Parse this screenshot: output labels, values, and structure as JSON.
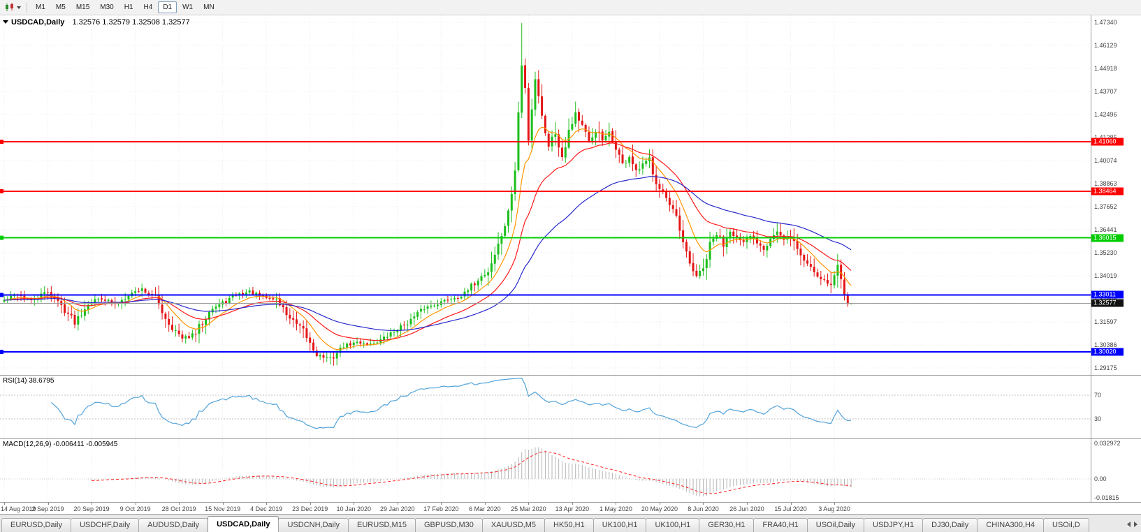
{
  "toolbar": {
    "timeframes": [
      "M1",
      "M5",
      "M15",
      "M30",
      "H1",
      "H4",
      "D1",
      "W1",
      "MN"
    ],
    "active": "D1"
  },
  "chart_header": {
    "title": "USDCAD,Daily",
    "ohlc_text": "1.32576 1.32579 1.32508 1.32577"
  },
  "rsi_panel": {
    "label": "RSI(14) 38.6795"
  },
  "macd_panel": {
    "label": "MACD(12,26,9) -0.006411 -0.005945",
    "axis_labels": [
      "0.032972",
      "0.00",
      "-0.01815"
    ]
  },
  "tabs": {
    "items": [
      "EURUSD,Daily",
      "USDCHF,Daily",
      "AUDUSD,Daily",
      "USDCAD,Daily",
      "USDCNH,Daily",
      "EURUSD,M15",
      "GBPUSD,M30",
      "XAUUSD,M5",
      "HK50,H1",
      "UK100,H1",
      "UK100,H1",
      "GER30,H1",
      "FRA40,H1",
      "USOil,Daily",
      "USDJPY,H1",
      "DJ30,Daily",
      "CHINA300,H4",
      "USOil,D"
    ],
    "active_index": 3
  },
  "chart_data": {
    "type": "candlestick",
    "symbol": "USDCAD",
    "timeframe": "Daily",
    "title": "USDCAD,Daily",
    "ohlc": {
      "open": "1.32576",
      "high": "1.32579",
      "low": "1.32508",
      "close": "1.32577"
    },
    "price_axis_top": 1.4734,
    "price_axis_bottom": 1.29175,
    "price_axis_ticks": [
      "1.47340",
      "1.46129",
      "1.44918",
      "1.43707",
      "1.42496",
      "1.41285",
      "1.40074",
      "1.38863",
      "1.37652",
      "1.36441",
      "1.35230",
      "1.34019",
      "1.32808",
      "1.31597",
      "1.30386",
      "1.29175"
    ],
    "date_ticks": [
      "14 Aug 2019",
      "2 Sep 2019",
      "20 Sep 2019",
      "9 Oct 2019",
      "28 Oct 2019",
      "15 Nov 2019",
      "4 Dec 2019",
      "23 Dec 2019",
      "10 Jan 2020",
      "29 Jan 2020",
      "17 Feb 2020",
      "6 Mar 2020",
      "25 Mar 2020",
      "13 Apr 2020",
      "1 May 2020",
      "20 May 2020",
      "8 Jun 2020",
      "26 Jun 2020",
      "15 Jul 2020",
      "3 Aug 2020"
    ],
    "candles_per_tick": 13,
    "candle_count": 253,
    "noise_seed": 42,
    "colors": {
      "bull": "#1cbf1c",
      "bear": "#e41616"
    },
    "anchors": [
      [
        0,
        1.3272
      ],
      [
        4,
        1.3305
      ],
      [
        8,
        1.3268
      ],
      [
        13,
        1.332
      ],
      [
        17,
        1.3245
      ],
      [
        21,
        1.3162
      ],
      [
        25,
        1.3258
      ],
      [
        29,
        1.3288
      ],
      [
        33,
        1.3248
      ],
      [
        37,
        1.3305
      ],
      [
        41,
        1.3332
      ],
      [
        45,
        1.3285
      ],
      [
        49,
        1.3152
      ],
      [
        53,
        1.3068
      ],
      [
        57,
        1.3098
      ],
      [
        61,
        1.3222
      ],
      [
        65,
        1.3258
      ],
      [
        69,
        1.3302
      ],
      [
        73,
        1.3318
      ],
      [
        77,
        1.3288
      ],
      [
        81,
        1.3278
      ],
      [
        85,
        1.3178
      ],
      [
        89,
        1.3108
      ],
      [
        93,
        1.2988
      ],
      [
        97,
        1.2962
      ],
      [
        101,
        1.3032
      ],
      [
        105,
        1.3052
      ],
      [
        109,
        1.3042
      ],
      [
        113,
        1.3072
      ],
      [
        117,
        1.3122
      ],
      [
        121,
        1.3168
      ],
      [
        125,
        1.3232
      ],
      [
        129,
        1.3258
      ],
      [
        133,
        1.3282
      ],
      [
        137,
        1.3302
      ],
      [
        141,
        1.3385
      ],
      [
        144,
        1.3425
      ],
      [
        147,
        1.3562
      ],
      [
        150,
        1.3725
      ],
      [
        152,
        1.3955
      ],
      [
        153,
        1.4255
      ],
      [
        154,
        1.4505
      ],
      [
        155,
        1.4385
      ],
      [
        156,
        1.4125
      ],
      [
        157,
        1.4285
      ],
      [
        158,
        1.4445
      ],
      [
        159,
        1.4355
      ],
      [
        160,
        1.4235
      ],
      [
        162,
        1.4095
      ],
      [
        164,
        1.4155
      ],
      [
        166,
        1.4035
      ],
      [
        168,
        1.4165
      ],
      [
        170,
        1.4262
      ],
      [
        172,
        1.4185
      ],
      [
        174,
        1.4092
      ],
      [
        176,
        1.4172
      ],
      [
        178,
        1.4112
      ],
      [
        180,
        1.4142
      ],
      [
        182,
        1.4082
      ],
      [
        184,
        1.3982
      ],
      [
        186,
        1.4032
      ],
      [
        188,
        1.3942
      ],
      [
        190,
        1.3982
      ],
      [
        192,
        1.4012
      ],
      [
        194,
        1.3902
      ],
      [
        196,
        1.3842
      ],
      [
        198,
        1.3762
      ],
      [
        200,
        1.3702
      ],
      [
        202,
        1.3562
      ],
      [
        204,
        1.3462
      ],
      [
        206,
        1.3402
      ],
      [
        208,
        1.3432
      ],
      [
        210,
        1.3562
      ],
      [
        212,
        1.3622
      ],
      [
        214,
        1.3572
      ],
      [
        216,
        1.3652
      ],
      [
        218,
        1.3602
      ],
      [
        220,
        1.3562
      ],
      [
        222,
        1.3612
      ],
      [
        224,
        1.3582
      ],
      [
        226,
        1.3552
      ],
      [
        228,
        1.3602
      ],
      [
        230,
        1.3632
      ],
      [
        232,
        1.3582
      ],
      [
        234,
        1.3612
      ],
      [
        236,
        1.3542
      ],
      [
        238,
        1.3482
      ],
      [
        240,
        1.3452
      ],
      [
        242,
        1.3402
      ],
      [
        244,
        1.3382
      ],
      [
        246,
        1.3352
      ],
      [
        248,
        1.3452
      ],
      [
        250,
        1.3322
      ],
      [
        251,
        1.3262
      ],
      [
        252,
        1.32577
      ]
    ],
    "wick_high_override": {
      "index": 154,
      "high": 1.473
    },
    "last_candle": {
      "open": 1.32576,
      "high": 1.32579,
      "low": 1.32508,
      "close": 1.32577
    },
    "moving_averages": [
      {
        "period": 10,
        "color": "#ff9500",
        "name": "fast-ema"
      },
      {
        "period": 24,
        "color": "#ff1a1a",
        "name": "mid-ema"
      },
      {
        "period": 55,
        "color": "#2929cc",
        "name": "slow-ema"
      }
    ],
    "hlines": [
      {
        "price": 1.4106,
        "label": "1.41060",
        "color": "#ff0000",
        "width": 2
      },
      {
        "price": 1.38464,
        "label": "1.38464",
        "color": "#ff0000",
        "width": 2
      },
      {
        "price": 1.36015,
        "label": "1.36015",
        "color": "#00cc00",
        "width": 2
      },
      {
        "price": 1.33011,
        "label": "1.33011",
        "color": "#0000ff",
        "width": 2
      },
      {
        "price": 1.3002,
        "label": "1.30020",
        "color": "#0000ff",
        "width": 2
      }
    ],
    "current_price": 1.32577,
    "current_price_label": "1.32577",
    "rsi": {
      "period": 14,
      "levels": [
        70,
        30
      ],
      "color": "#52a3d9",
      "current": 38.6795
    },
    "macd": {
      "fast": 12,
      "slow": 26,
      "signal": 9,
      "scale_max": 0.032972,
      "scale_min": -0.01815,
      "hist_color": "#b4b4b4",
      "signal_color": "#ff2020"
    }
  }
}
